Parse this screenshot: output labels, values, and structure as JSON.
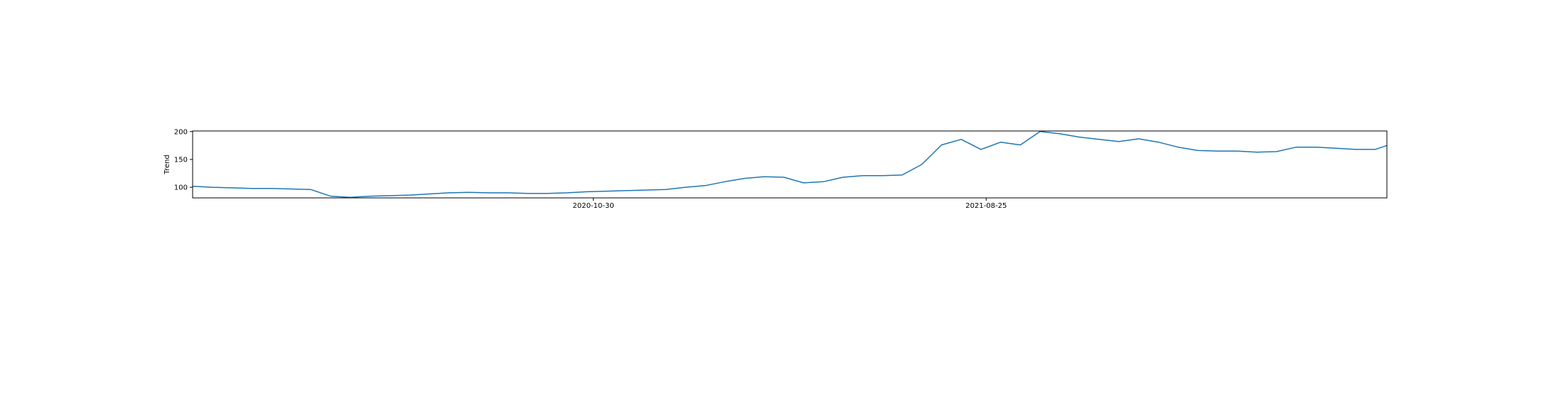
{
  "chart_data": {
    "type": "line",
    "title": "",
    "xlabel": "",
    "ylabel": "Trend",
    "grid": false,
    "legend": "none",
    "line_color": "#1f77b4",
    "x_axis": {
      "type": "date",
      "range": [
        "2019-12-30",
        "2022-06-26"
      ],
      "ticks": [
        "2020-10-30",
        "2021-08-25"
      ]
    },
    "y_axis": {
      "range": [
        81,
        201
      ],
      "ticks": [
        100,
        150,
        200
      ]
    },
    "series": [
      {
        "x": [
          "2019-12-30",
          "2020-01-14",
          "2020-01-29",
          "2020-02-13",
          "2020-02-28",
          "2020-03-14",
          "2020-03-29",
          "2020-04-13",
          "2020-04-28",
          "2020-05-13",
          "2020-05-28",
          "2020-06-12",
          "2020-06-27",
          "2020-07-12",
          "2020-07-27",
          "2020-08-11",
          "2020-08-26",
          "2020-09-10",
          "2020-09-25",
          "2020-10-10",
          "2020-10-25",
          "2020-11-09",
          "2020-11-24",
          "2020-12-09",
          "2020-12-24",
          "2021-01-08",
          "2021-01-23",
          "2021-02-07",
          "2021-02-22",
          "2021-03-09",
          "2021-03-24",
          "2021-04-08",
          "2021-04-23",
          "2021-05-08",
          "2021-05-23",
          "2021-06-07",
          "2021-06-22",
          "2021-07-07",
          "2021-07-22",
          "2021-08-06",
          "2021-08-21",
          "2021-09-05",
          "2021-09-20",
          "2021-10-05",
          "2021-10-20",
          "2021-11-04",
          "2021-11-19",
          "2021-12-04",
          "2021-12-19",
          "2022-01-03",
          "2022-01-18",
          "2022-02-02",
          "2022-02-17",
          "2022-03-04",
          "2022-03-19",
          "2022-04-03",
          "2022-04-18",
          "2022-05-03",
          "2022-05-18",
          "2022-06-02",
          "2022-06-17",
          "2022-06-26"
        ],
        "y": [
          102,
          100,
          99,
          98,
          98,
          97,
          96,
          84,
          82,
          84,
          85,
          86,
          88,
          90,
          91,
          90,
          90,
          89,
          89,
          90,
          92,
          93,
          94,
          95,
          96,
          100,
          103,
          110,
          116,
          119,
          118,
          108,
          110,
          118,
          121,
          121,
          122,
          141,
          176,
          186,
          168,
          181,
          176,
          200,
          196,
          190,
          186,
          182,
          187,
          181,
          172,
          166,
          165,
          165,
          163,
          164,
          172,
          172,
          170,
          168,
          168,
          175
        ]
      }
    ]
  }
}
